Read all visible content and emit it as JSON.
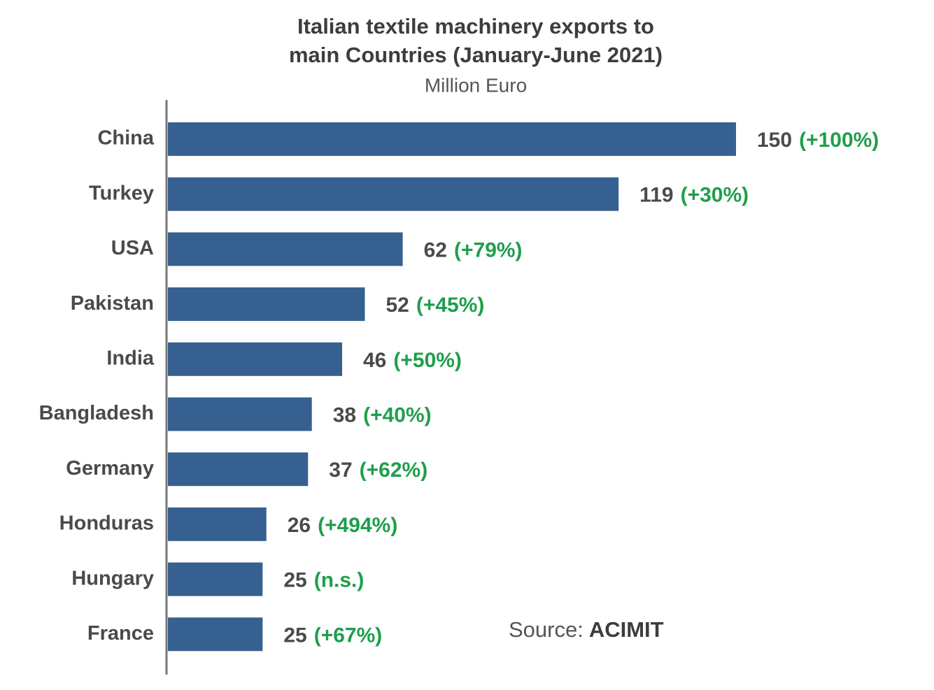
{
  "chart_data": {
    "type": "bar",
    "orientation": "horizontal",
    "title": [
      "Italian textile machinery exports to",
      "main Countries (January-June 2021)"
    ],
    "subtitle": "Million Euro",
    "categories": [
      "China",
      "Turkey",
      "USA",
      "Pakistan",
      "India",
      "Bangladesh",
      "Germany",
      "Honduras",
      "Hungary",
      "France"
    ],
    "values": [
      150,
      119,
      62,
      52,
      46,
      38,
      37,
      26,
      25,
      25
    ],
    "changes": [
      "(+100%)",
      "(+30%)",
      "(+79%)",
      "(+45%)",
      "(+50%)",
      "(+40%)",
      "(+62%)",
      "(+494%)",
      "(n.s.)",
      "(+67%)"
    ],
    "color": "#35608f",
    "change_color": "#1f9e4c",
    "source_label": "Source:",
    "source": "ACIMIT"
  }
}
